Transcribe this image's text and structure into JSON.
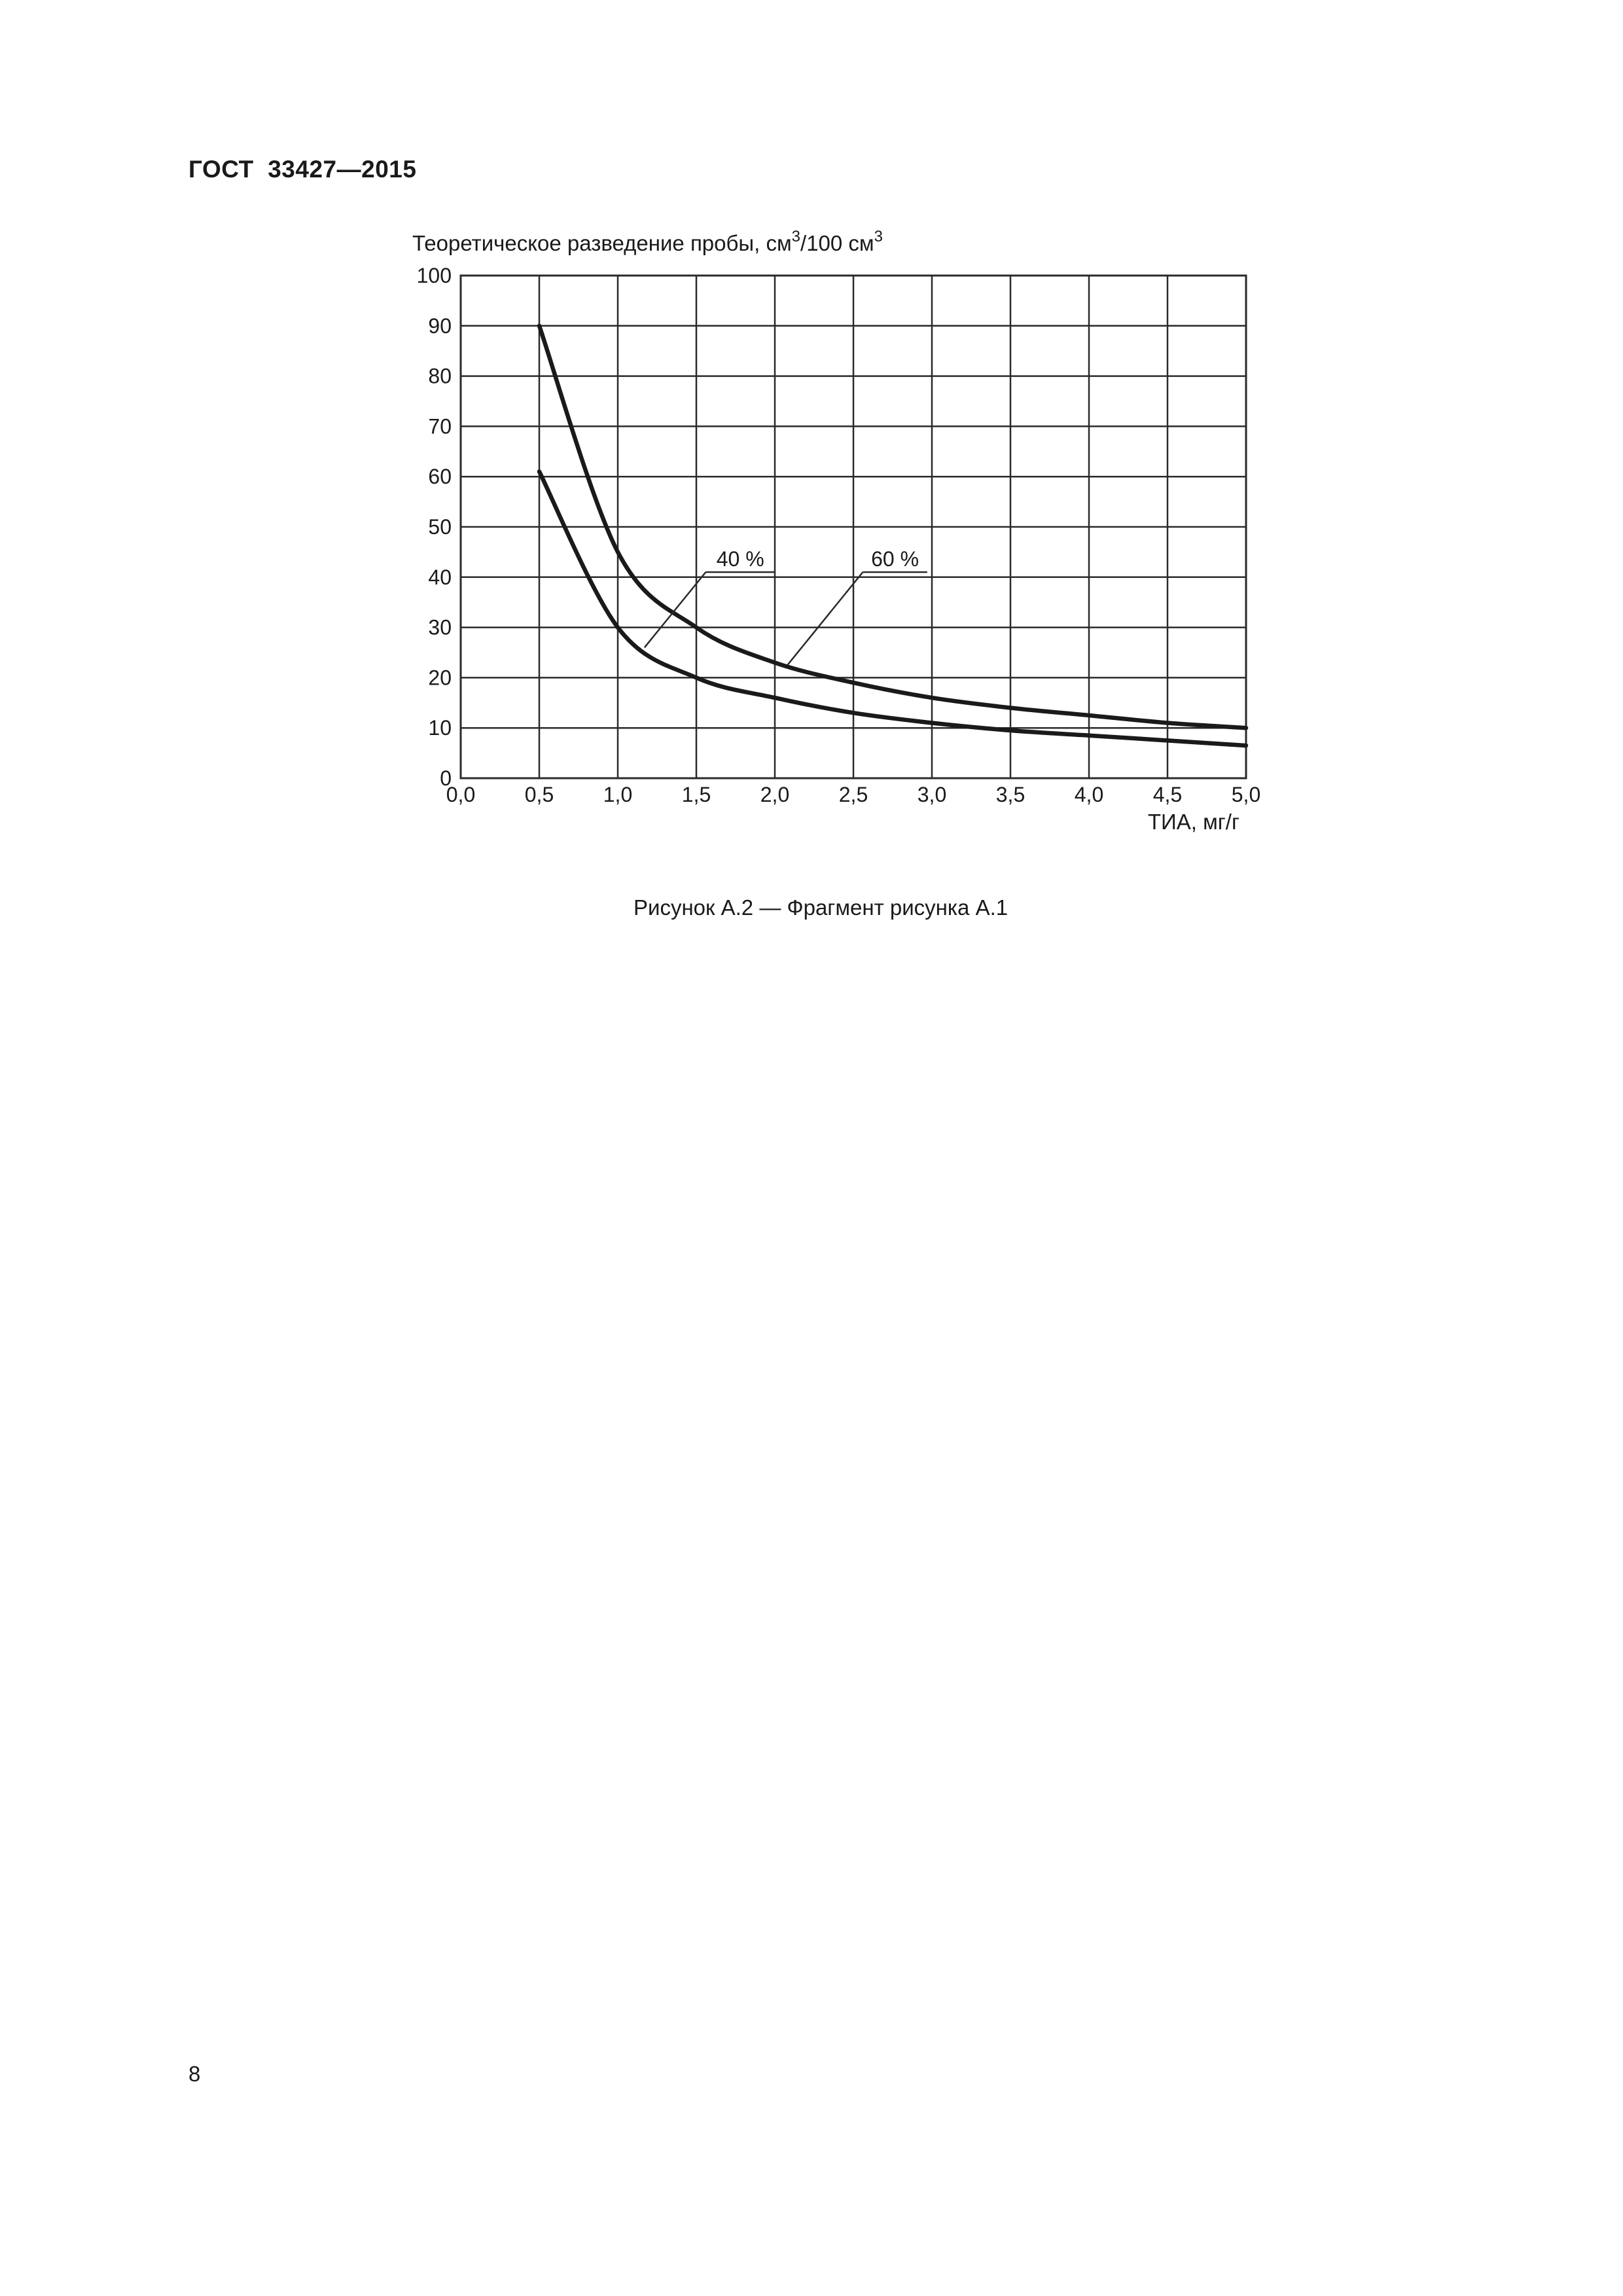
{
  "page": {
    "header": "ГОСТ  33427—2015",
    "caption": "Рисунок А.2 — Фрагмент рисунка А.1",
    "page_number": "8"
  },
  "chart_data": {
    "type": "line",
    "title_parts": {
      "prefix": "Теоретическое разведение пробы, см",
      "sup1": "3",
      "mid": "/100 см",
      "sup2": "3"
    },
    "xlabel": "ТИА, мг/г",
    "ylabel": "Теоретическое разведение пробы, см3/100 см3",
    "xlim": [
      0,
      5
    ],
    "ylim": [
      0,
      100
    ],
    "grid": true,
    "legend_position": "inline-annotations",
    "x_ticks": [
      {
        "v": 0.0,
        "label": "0,0"
      },
      {
        "v": 0.5,
        "label": "0,5"
      },
      {
        "v": 1.0,
        "label": "1,0"
      },
      {
        "v": 1.5,
        "label": "1,5"
      },
      {
        "v": 2.0,
        "label": "2,0"
      },
      {
        "v": 2.5,
        "label": "2,5"
      },
      {
        "v": 3.0,
        "label": "3,0"
      },
      {
        "v": 3.5,
        "label": "3,5"
      },
      {
        "v": 4.0,
        "label": "4,0"
      },
      {
        "v": 4.5,
        "label": "4,5"
      },
      {
        "v": 5.0,
        "label": "5,0"
      }
    ],
    "y_ticks": [
      {
        "v": 0,
        "label": "0"
      },
      {
        "v": 10,
        "label": "10"
      },
      {
        "v": 20,
        "label": "20"
      },
      {
        "v": 30,
        "label": "30"
      },
      {
        "v": 40,
        "label": "40"
      },
      {
        "v": 50,
        "label": "50"
      },
      {
        "v": 60,
        "label": "60"
      },
      {
        "v": 70,
        "label": "70"
      },
      {
        "v": 80,
        "label": "80"
      },
      {
        "v": 90,
        "label": "90"
      },
      {
        "v": 100,
        "label": "100"
      }
    ],
    "series": [
      {
        "name": "60 %",
        "points": [
          [
            0.5,
            90
          ],
          [
            1.0,
            45
          ],
          [
            1.5,
            30
          ],
          [
            2.0,
            23
          ],
          [
            2.5,
            19
          ],
          [
            3.0,
            16
          ],
          [
            3.5,
            14
          ],
          [
            4.0,
            12.5
          ],
          [
            4.5,
            11
          ],
          [
            5.0,
            10
          ]
        ]
      },
      {
        "name": "40 %",
        "points": [
          [
            0.5,
            61
          ],
          [
            1.0,
            30
          ],
          [
            1.5,
            20
          ],
          [
            2.0,
            16
          ],
          [
            2.5,
            13
          ],
          [
            3.0,
            11
          ],
          [
            3.5,
            9.5
          ],
          [
            4.0,
            8.5
          ],
          [
            4.5,
            7.5
          ],
          [
            5.0,
            6.5
          ]
        ]
      }
    ],
    "annotations": [
      {
        "label": "40 %",
        "underline": [
          1.56,
          2.0
        ],
        "line_y": 41,
        "target": [
          1.17,
          26.0
        ]
      },
      {
        "label": "60 %",
        "underline": [
          2.56,
          2.97
        ],
        "line_y": 41,
        "target": [
          2.08,
          22.5
        ]
      }
    ],
    "line_color": "#1a1a1a",
    "grid_color": "#2a2a2a"
  }
}
